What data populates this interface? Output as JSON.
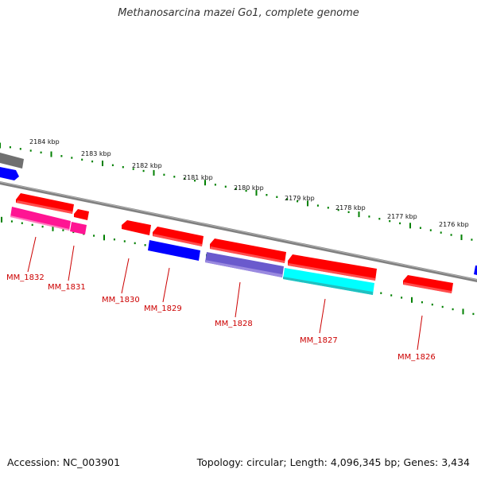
{
  "title": "Methanosarcina mazei Go1, complete genome",
  "footer": {
    "accession": "Accession: NC_003901",
    "topology": "Topology: circular; Length: 4,096,345 bp; Genes: 3,434"
  },
  "ticks": [
    {
      "label": "2184 kbp"
    },
    {
      "label": "2183 kbp"
    },
    {
      "label": "2182 kbp"
    },
    {
      "label": "2181 kbp"
    },
    {
      "label": "2180 kbp"
    },
    {
      "label": "2179 kbp"
    },
    {
      "label": "2178 kbp"
    },
    {
      "label": "2177 kbp"
    },
    {
      "label": "2176 kbp"
    }
  ],
  "genes": [
    {
      "label": "MM_1832"
    },
    {
      "label": "MM_1831"
    },
    {
      "label": "MM_1830"
    },
    {
      "label": "MM_1829"
    },
    {
      "label": "MM_1828"
    },
    {
      "label": "MM_1827"
    },
    {
      "label": "MM_1826"
    }
  ],
  "colors": {
    "cds_red": "#ff0000",
    "pink": "#ff1493",
    "blue": "#0000ff",
    "slate": "#6a5acd",
    "cyan": "#00ffff",
    "gray": "#707070",
    "ticks": "#008000",
    "label": "#cc0000"
  }
}
